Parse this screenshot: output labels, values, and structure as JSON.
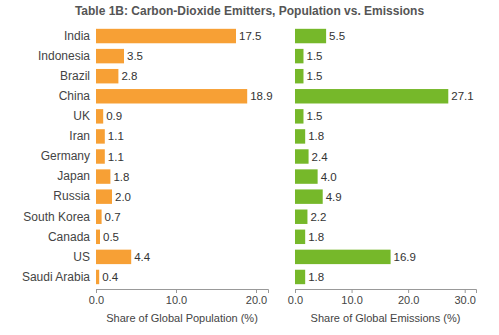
{
  "chart_data": [
    {
      "type": "bar",
      "orientation": "horizontal",
      "title": "Table 1B: Carbon-Dioxide Emitters, Population vs. Emissions",
      "xlabel": "Share of Global Population (%)",
      "categories": [
        "India",
        "Indonesia",
        "Brazil",
        "China",
        "UK",
        "Iran",
        "Germany",
        "Japan",
        "Russia",
        "South Korea",
        "Canada",
        "US",
        "Saudi Arabia"
      ],
      "values": [
        17.5,
        3.5,
        2.8,
        18.9,
        0.9,
        1.1,
        1.1,
        1.8,
        2.0,
        0.7,
        0.5,
        4.4,
        0.4
      ],
      "value_labels": [
        "17.5",
        "3.5",
        "2.8",
        "18.9",
        "0.9",
        "1.1",
        "1.1",
        "1.8",
        "2.0",
        "0.7",
        "0.5",
        "4.4",
        "0.4"
      ],
      "color": "#f7a035",
      "xlim": [
        0,
        21.5
      ],
      "xticks": [
        {
          "value": 0,
          "label": "0.0"
        },
        {
          "value": 10,
          "label": "10.0"
        },
        {
          "value": 20,
          "label": "20.0"
        }
      ],
      "data_labels": true
    },
    {
      "type": "bar",
      "orientation": "horizontal",
      "xlabel": "Share of Global Emissions (%)",
      "categories": [
        "India",
        "Indonesia",
        "Brazil",
        "China",
        "UK",
        "Iran",
        "Germany",
        "Japan",
        "Russia",
        "South Korea",
        "Canada",
        "US",
        "Saudi Arabia"
      ],
      "values": [
        5.5,
        1.5,
        1.5,
        27.1,
        1.5,
        1.8,
        2.4,
        4.0,
        4.9,
        2.2,
        1.8,
        16.9,
        1.8
      ],
      "value_labels": [
        "5.5",
        "1.5",
        "1.5",
        "27.1",
        "1.5",
        "1.8",
        "2.4",
        "4.0",
        "4.9",
        "2.2",
        "1.8",
        "16.9",
        "1.8"
      ],
      "color": "#76b82a",
      "xlim": [
        0,
        32
      ],
      "xticks": [
        {
          "value": 0,
          "label": "0.0"
        },
        {
          "value": 10,
          "label": "10.0"
        },
        {
          "value": 20,
          "label": "20.0"
        },
        {
          "value": 30,
          "label": "30.0"
        }
      ],
      "data_labels": true,
      "tick_labels": "x"
    }
  ]
}
